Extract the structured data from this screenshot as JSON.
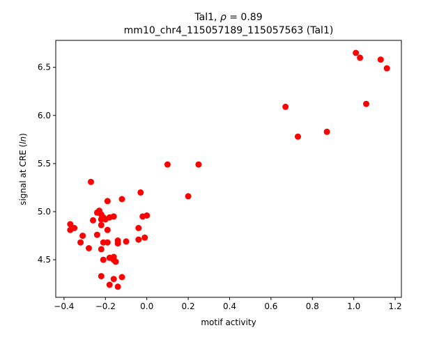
{
  "chart_data": {
    "type": "scatter",
    "title_line1_prefix": "Tal1, ",
    "title_line1_rho": "ρ",
    "title_line1_suffix": " = 0.89",
    "title_line2": "mm10_chr4_115057189_115057563 (Tal1)",
    "xlabel": "motif activity",
    "ylabel_prefix": "signal at CRE (",
    "ylabel_italic": "ln",
    "ylabel_suffix": ")",
    "xlim": [
      -0.44,
      1.23
    ],
    "ylim": [
      4.11,
      6.78
    ],
    "x_ticks": [
      -0.4,
      -0.2,
      0.0,
      0.2,
      0.4,
      0.6,
      0.8,
      1.0,
      1.2
    ],
    "x_tick_labels": [
      "−0.4",
      "−0.2",
      "0.0",
      "0.2",
      "0.4",
      "0.6",
      "0.8",
      "1.0",
      "1.2"
    ],
    "y_ticks": [
      4.5,
      5.0,
      5.5,
      6.0,
      6.5
    ],
    "y_tick_labels": [
      "4.5",
      "5.0",
      "5.5",
      "6.0",
      "6.5"
    ],
    "grid": false,
    "marker_color": "#ff0000",
    "points": [
      {
        "x": 1.01,
        "y": 6.65
      },
      {
        "x": 1.03,
        "y": 6.6
      },
      {
        "x": 1.13,
        "y": 6.58
      },
      {
        "x": 1.16,
        "y": 6.49
      },
      {
        "x": 0.67,
        "y": 6.09
      },
      {
        "x": 1.06,
        "y": 6.12
      },
      {
        "x": 0.87,
        "y": 5.83
      },
      {
        "x": 0.73,
        "y": 5.78
      },
      {
        "x": 0.1,
        "y": 5.49
      },
      {
        "x": 0.25,
        "y": 5.49
      },
      {
        "x": 0.2,
        "y": 5.16
      },
      {
        "x": -0.27,
        "y": 5.31
      },
      {
        "x": -0.03,
        "y": 5.2
      },
      {
        "x": -0.12,
        "y": 5.13
      },
      {
        "x": -0.19,
        "y": 5.11
      },
      {
        "x": -0.37,
        "y": 4.87
      },
      {
        "x": -0.37,
        "y": 4.81
      },
      {
        "x": -0.35,
        "y": 4.83
      },
      {
        "x": -0.32,
        "y": 4.68
      },
      {
        "x": -0.31,
        "y": 4.75
      },
      {
        "x": -0.28,
        "y": 4.62
      },
      {
        "x": -0.26,
        "y": 4.91
      },
      {
        "x": -0.24,
        "y": 4.99
      },
      {
        "x": -0.23,
        "y": 5.01
      },
      {
        "x": -0.24,
        "y": 4.76
      },
      {
        "x": -0.22,
        "y": 4.97
      },
      {
        "x": -0.22,
        "y": 4.92
      },
      {
        "x": -0.21,
        "y": 4.94
      },
      {
        "x": -0.2,
        "y": 4.92
      },
      {
        "x": -0.22,
        "y": 4.86
      },
      {
        "x": -0.18,
        "y": 4.94
      },
      {
        "x": -0.16,
        "y": 4.95
      },
      {
        "x": -0.19,
        "y": 4.81
      },
      {
        "x": -0.21,
        "y": 4.68
      },
      {
        "x": -0.19,
        "y": 4.68
      },
      {
        "x": -0.22,
        "y": 4.61
      },
      {
        "x": -0.14,
        "y": 4.7
      },
      {
        "x": -0.14,
        "y": 4.67
      },
      {
        "x": -0.1,
        "y": 4.69
      },
      {
        "x": -0.21,
        "y": 4.5
      },
      {
        "x": -0.18,
        "y": 4.52
      },
      {
        "x": -0.16,
        "y": 4.53
      },
      {
        "x": -0.16,
        "y": 4.5
      },
      {
        "x": -0.15,
        "y": 4.48
      },
      {
        "x": -0.22,
        "y": 4.33
      },
      {
        "x": -0.16,
        "y": 4.3
      },
      {
        "x": -0.12,
        "y": 4.32
      },
      {
        "x": -0.18,
        "y": 4.24
      },
      {
        "x": -0.14,
        "y": 4.22
      },
      {
        "x": -0.04,
        "y": 4.83
      },
      {
        "x": -0.04,
        "y": 4.71
      },
      {
        "x": -0.02,
        "y": 4.95
      },
      {
        "x": 0.0,
        "y": 4.96
      },
      {
        "x": -0.01,
        "y": 4.73
      }
    ]
  }
}
